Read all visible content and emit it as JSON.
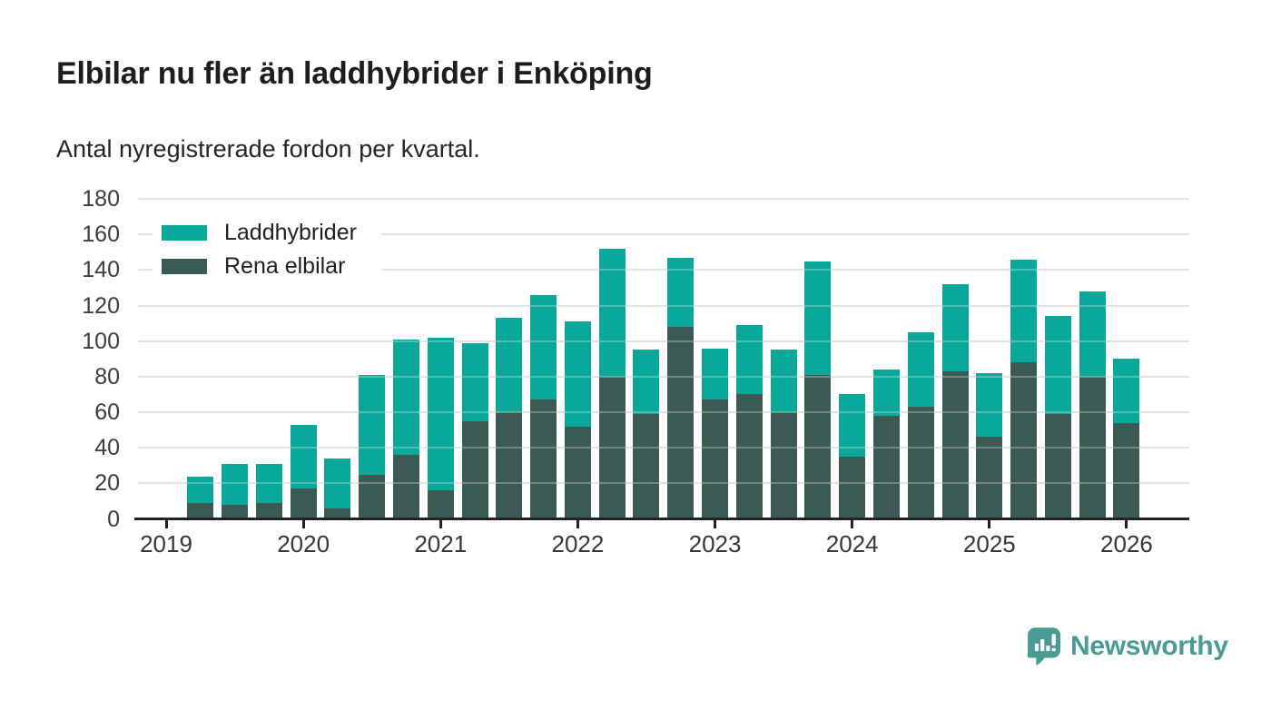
{
  "header": {
    "title": "Elbilar nu fler än laddhybrider i Enköping",
    "subtitle": "Antal nyregistrerade fordon per kvartal."
  },
  "legend": {
    "items": [
      {
        "label": "Laddhybrider",
        "color": "#0aa79b"
      },
      {
        "label": "Rena elbilar",
        "color": "#3b5a54"
      }
    ]
  },
  "chart_data": {
    "type": "bar",
    "stacked": true,
    "title": "Elbilar nu fler än laddhybrider i Enköping",
    "subtitle": "Antal nyregistrerade fordon per kvartal.",
    "categories": [
      "2019 Q1",
      "2019 Q2",
      "2019 Q3",
      "2019 Q4",
      "2020 Q1",
      "2020 Q2",
      "2020 Q3",
      "2020 Q4",
      "2021 Q1",
      "2021 Q2",
      "2021 Q3",
      "2021 Q4",
      "2022 Q1",
      "2022 Q2",
      "2022 Q3",
      "2022 Q4",
      "2023 Q1",
      "2023 Q2",
      "2023 Q3",
      "2023 Q4",
      "2024 Q1",
      "2024 Q2",
      "2024 Q3",
      "2024 Q4",
      "2025 Q1",
      "2025 Q2",
      "2025 Q3",
      "2025 Q4",
      "2026 Q1"
    ],
    "series": [
      {
        "name": "Rena elbilar",
        "color": "#3b5a54",
        "values": [
          0,
          9,
          8,
          9,
          17,
          6,
          25,
          36,
          16,
          55,
          60,
          67,
          52,
          80,
          59,
          108,
          67,
          70,
          60,
          81,
          35,
          58,
          63,
          83,
          46,
          88,
          59,
          80,
          54
        ]
      },
      {
        "name": "Laddhybrider",
        "color": "#0aa79b",
        "values": [
          0,
          15,
          23,
          22,
          36,
          28,
          56,
          65,
          86,
          44,
          53,
          59,
          59,
          72,
          36,
          39,
          29,
          39,
          35,
          64,
          35,
          26,
          42,
          49,
          36,
          58,
          55,
          48,
          36
        ]
      }
    ],
    "stack_totals": [
      0,
      24,
      31,
      31,
      53,
      34,
      81,
      101,
      102,
      99,
      113,
      126,
      111,
      152,
      95,
      147,
      96,
      109,
      95,
      145,
      70,
      84,
      105,
      132,
      82,
      146,
      114,
      128,
      90
    ],
    "xlabel": "",
    "ylabel": "",
    "ylim": [
      0,
      180
    ],
    "yticks": [
      0,
      20,
      40,
      60,
      80,
      100,
      120,
      140,
      160,
      180
    ],
    "xtick_labels": [
      "2019",
      "2020",
      "2021",
      "2022",
      "2023",
      "2024",
      "2025",
      "2026"
    ],
    "xticks_at_category_index": [
      0,
      4,
      8,
      12,
      16,
      20,
      24,
      28
    ],
    "grid": true,
    "legend_position": "top-left",
    "colors": {
      "grid": "#d8d8d8",
      "axis": "#222222",
      "tick_label": "#3c3c3c"
    }
  },
  "footer": {
    "brand": "Newsworthy",
    "brand_color": "#4a9b96",
    "logo_icon": "bar-chart-speech-bubble-icon"
  }
}
